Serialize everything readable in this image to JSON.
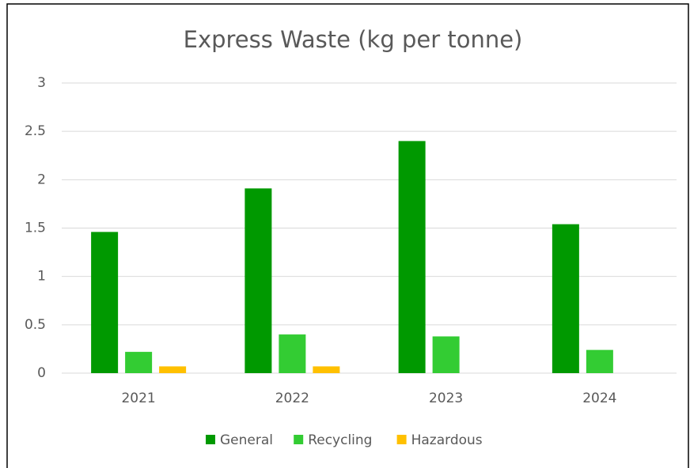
{
  "chart_data": {
    "type": "bar",
    "title": "Express Waste (kg per tonne)",
    "categories": [
      "2021",
      "2022",
      "2023",
      "2024"
    ],
    "series": [
      {
        "name": "General",
        "color": "#009900",
        "values": [
          1.46,
          1.91,
          2.4,
          1.54
        ]
      },
      {
        "name": "Recycling",
        "color": "#33cc33",
        "values": [
          0.22,
          0.4,
          0.38,
          0.24
        ]
      },
      {
        "name": "Hazardous",
        "color": "#ffc000",
        "values": [
          0.07,
          0.07,
          0,
          0
        ]
      }
    ],
    "ylim": [
      0,
      3
    ],
    "yticks": [
      0,
      0.5,
      1,
      1.5,
      2,
      2.5,
      3
    ],
    "grid": true,
    "legend": "bottom"
  }
}
